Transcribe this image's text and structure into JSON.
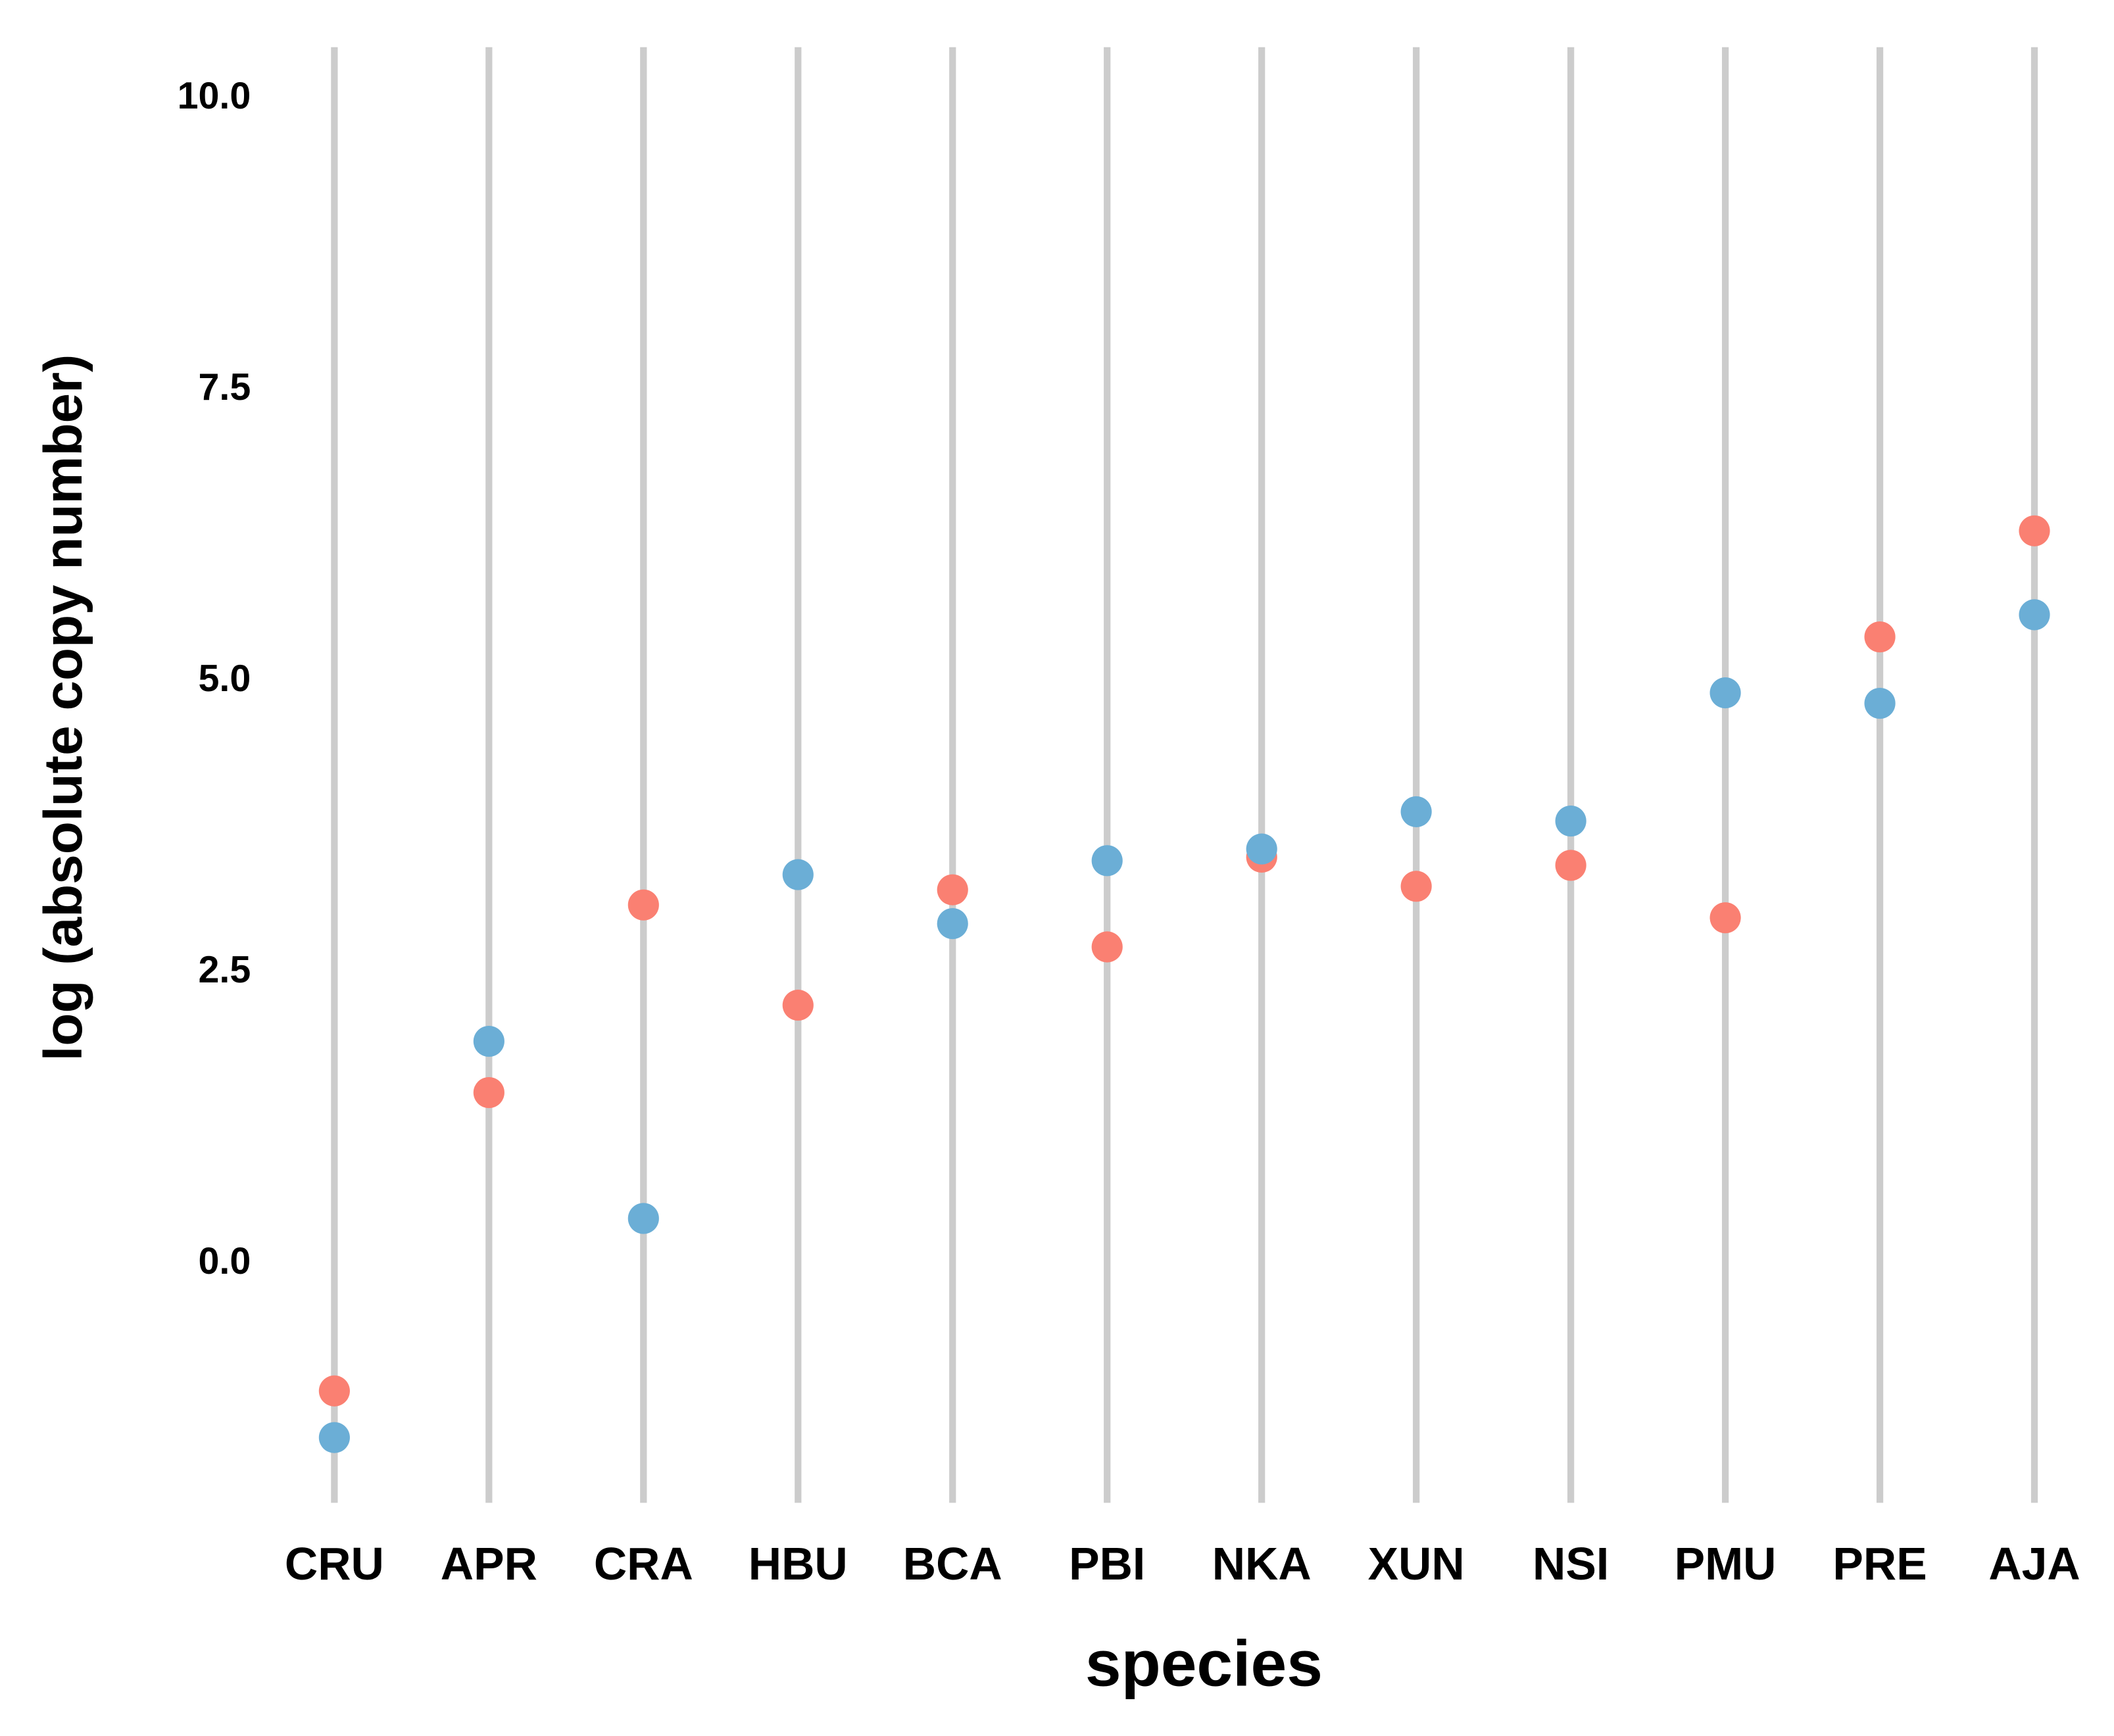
{
  "chart_data": {
    "type": "dot",
    "x_label": "species",
    "y_label": "log (absolute copy number)",
    "categories": [
      "CRU",
      "APR",
      "CRA",
      "HBU",
      "BCA",
      "PBI",
      "NKA",
      "XUN",
      "NSI",
      "PMU",
      "PRE",
      "AJA"
    ],
    "series": [
      {
        "color": "#fa8072",
        "values": [
          -1.09,
          1.47,
          3.08,
          2.22,
          3.21,
          2.72,
          3.49,
          3.24,
          3.42,
          2.97,
          5.38,
          6.29
        ]
      },
      {
        "color": "#6baed6",
        "values": [
          -1.49,
          1.91,
          0.39,
          3.34,
          2.92,
          3.46,
          3.56,
          3.88,
          3.8,
          4.9,
          4.81,
          5.57
        ]
      }
    ],
    "ylim": [
      -2.05,
      10.44
    ],
    "yticks": [
      {
        "value": 0,
        "label": "0.0"
      },
      2.5,
      {
        "value": 5,
        "label": "5.0"
      },
      7.5,
      {
        "value": 10,
        "label": "10.0"
      }
    ],
    "category_lines": true
  }
}
